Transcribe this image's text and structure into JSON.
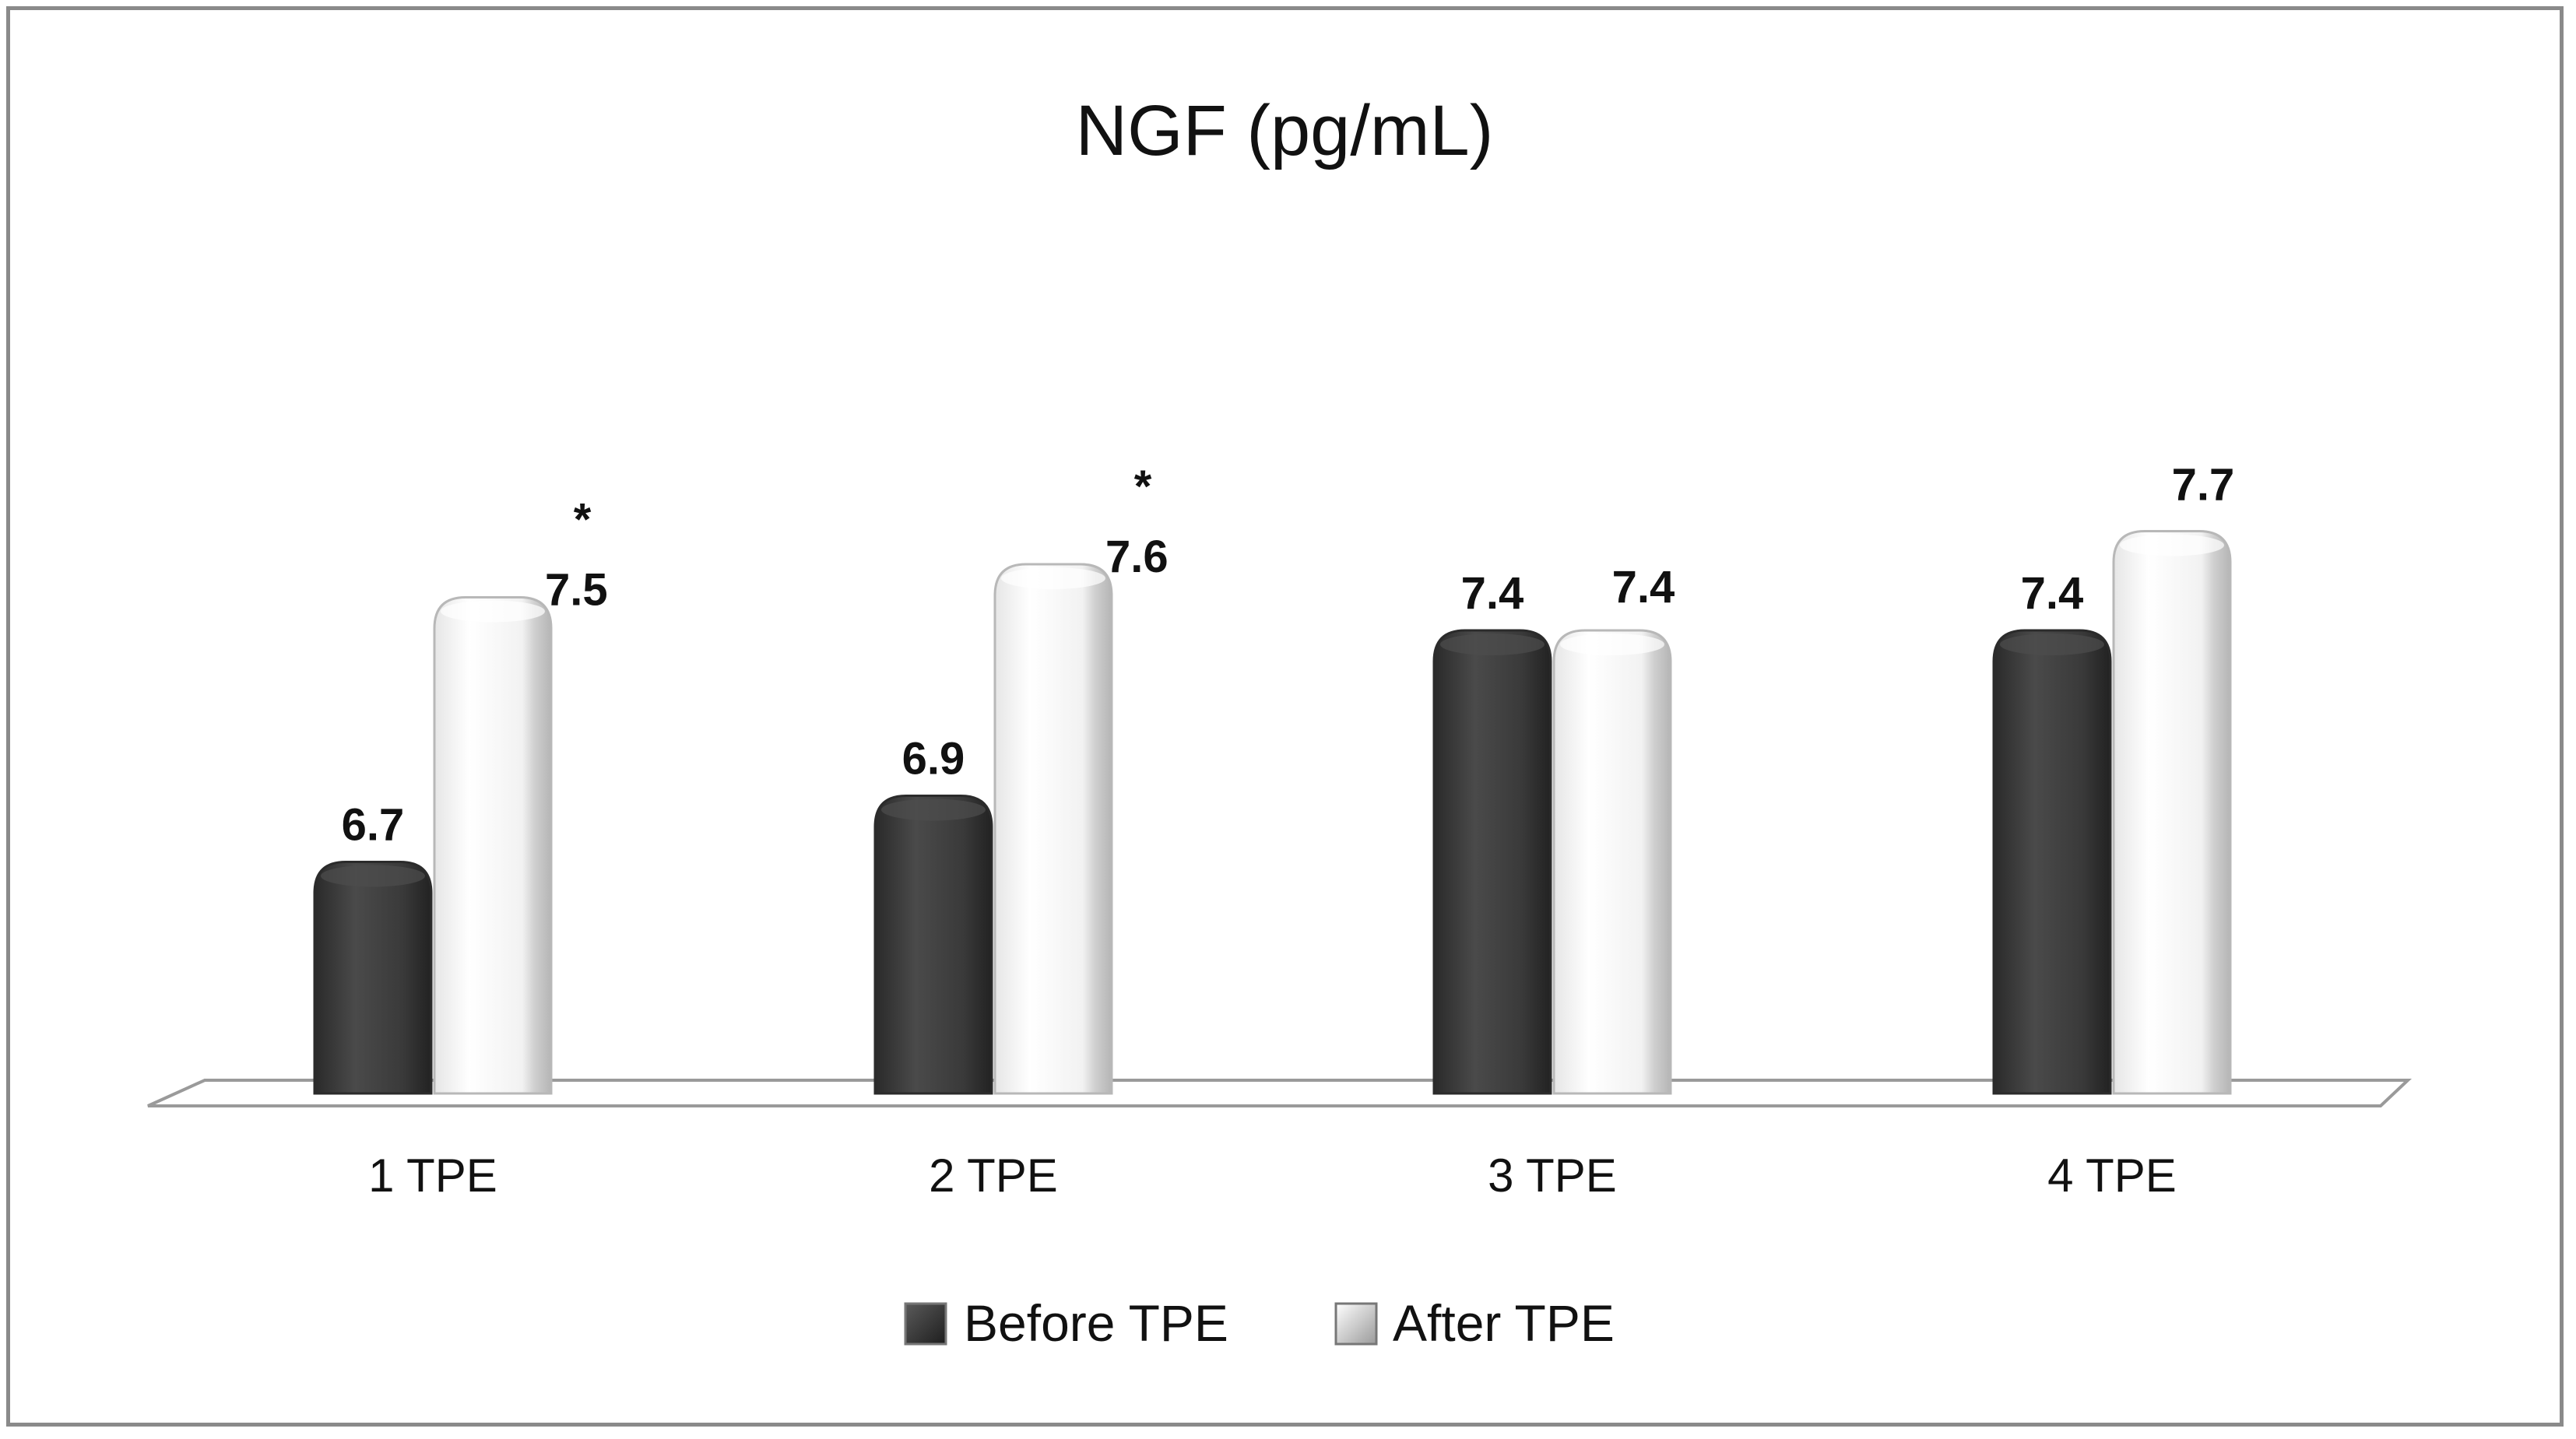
{
  "chart_data": {
    "type": "bar",
    "title": "NGF (pg/mL)",
    "categories": [
      "1 TPE",
      "2 TPE",
      "3 TPE",
      "4 TPE"
    ],
    "series": [
      {
        "name": "Before TPE",
        "values": [
          6.7,
          6.9,
          7.4,
          7.4
        ],
        "labels": [
          "6.7",
          "6.9",
          "7.4",
          "7.4"
        ],
        "color": "#3a3a3a"
      },
      {
        "name": "After TPE",
        "values": [
          7.5,
          7.6,
          7.4,
          7.7
        ],
        "labels": [
          "7.5",
          "7.6",
          "7.4",
          "7.7"
        ],
        "color": "#f4f4f4"
      }
    ],
    "significance": [
      "*",
      "*",
      "",
      ""
    ],
    "ylim": [
      6.0,
      8.0
    ],
    "xlabel": "",
    "ylabel": "",
    "grid": false,
    "legend": "bottom"
  }
}
